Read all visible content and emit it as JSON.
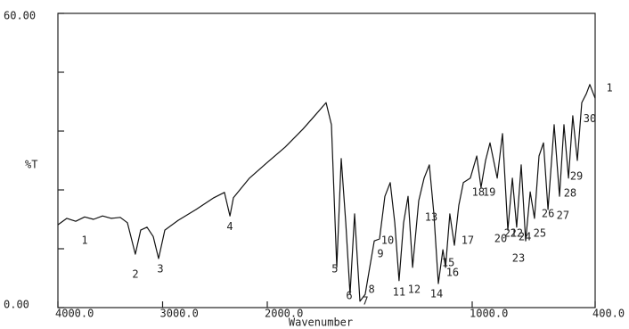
{
  "chart_data": {
    "type": "line",
    "ylabel": "%T",
    "xlabel": "Wavenumber",
    "xlim": [
      4000,
      400
    ],
    "x_scale_change_at": 2000,
    "ylim": [
      0,
      60
    ],
    "xticks": [
      {
        "value": 4000,
        "label": "4000.0"
      },
      {
        "value": 3000,
        "label": "3000.0"
      },
      {
        "value": 2000,
        "label": "2000.0"
      },
      {
        "value": 1000,
        "label": "1000.0"
      },
      {
        "value": 400,
        "label": "400.0"
      }
    ],
    "yticks": [
      {
        "value": 0,
        "label": "0.00"
      },
      {
        "value": 60,
        "label": "60.00"
      }
    ],
    "yminorticks": [
      12,
      24,
      36,
      48
    ],
    "grid": false,
    "color": "#111111",
    "x": [
      4000,
      3915,
      3830,
      3745,
      3660,
      3574,
      3489,
      3404,
      3336,
      3260,
      3209,
      3149,
      3089,
      3038,
      2979,
      2851,
      2681,
      2511,
      2409,
      2357,
      2323,
      2170,
      2000,
      1913,
      1826,
      1761,
      1713,
      1687,
      1661,
      1639,
      1617,
      1596,
      1574,
      1548,
      1522,
      1500,
      1478,
      1452,
      1426,
      1400,
      1378,
      1357,
      1335,
      1313,
      1291,
      1261,
      1235,
      1209,
      1187,
      1165,
      1143,
      1130,
      1109,
      1087,
      1065,
      1043,
      1009,
      978,
      957,
      935,
      913,
      878,
      852,
      826,
      804,
      783,
      761,
      739,
      717,
      696,
      674,
      652,
      630,
      600,
      574,
      552,
      530,
      509,
      487,
      465,
      443,
      426,
      400
    ],
    "values": [
      16.9,
      18.2,
      17.6,
      18.5,
      18.0,
      18.7,
      18.2,
      18.4,
      17.3,
      10.9,
      15.8,
      16.4,
      14.5,
      10.0,
      15.8,
      17.8,
      20.0,
      22.4,
      23.5,
      18.7,
      22.4,
      26.4,
      29.6,
      32.7,
      36.4,
      39.5,
      41.8,
      37.3,
      8.2,
      30.4,
      17.3,
      2.7,
      19.1,
      1.3,
      2.7,
      8.2,
      13.6,
      14.0,
      22.7,
      25.5,
      17.3,
      5.5,
      17.3,
      22.7,
      8.2,
      21.8,
      26.4,
      29.1,
      19.1,
      4.9,
      11.8,
      8.2,
      19.1,
      12.7,
      20.9,
      25.5,
      26.4,
      30.9,
      24.5,
      30.0,
      33.6,
      26.4,
      35.5,
      15.8,
      26.4,
      16.4,
      29.1,
      13.6,
      23.6,
      18.2,
      30.9,
      33.6,
      20.0,
      37.3,
      22.7,
      37.3,
      26.4,
      39.1,
      30.0,
      41.8,
      43.6,
      45.5,
      42.7
    ],
    "annotations": [
      {
        "label": "1",
        "x": 3745,
        "y": 13.6
      },
      {
        "label": "2",
        "x": 3260,
        "y": 6.7
      },
      {
        "label": "3",
        "x": 3021,
        "y": 7.8
      },
      {
        "label": "4",
        "x": 2357,
        "y": 16.5
      },
      {
        "label": "5",
        "x": 1670,
        "y": 7.8
      },
      {
        "label": "6",
        "x": 1600,
        "y": 2.4
      },
      {
        "label": "7",
        "x": 1522,
        "y": 1.3
      },
      {
        "label": "8",
        "x": 1491,
        "y": 3.6
      },
      {
        "label": "9",
        "x": 1448,
        "y": 10.9
      },
      {
        "label": "10",
        "x": 1413,
        "y": 13.6
      },
      {
        "label": "11",
        "x": 1357,
        "y": 3.1
      },
      {
        "label": "12",
        "x": 1283,
        "y": 3.6
      },
      {
        "label": "13",
        "x": 1200,
        "y": 18.4
      },
      {
        "label": "14",
        "x": 1174,
        "y": 2.7
      },
      {
        "label": "15",
        "x": 1117,
        "y": 9.1
      },
      {
        "label": "16",
        "x": 1096,
        "y": 7.1
      },
      {
        "label": "17",
        "x": 1022,
        "y": 13.6
      },
      {
        "label": "18",
        "x": 970,
        "y": 23.5
      },
      {
        "label": "19",
        "x": 917,
        "y": 23.5
      },
      {
        "label": "20",
        "x": 861,
        "y": 14.0
      },
      {
        "label": "21",
        "x": 813,
        "y": 15.1
      },
      {
        "label": "22",
        "x": 783,
        "y": 15.1
      },
      {
        "label": "23",
        "x": 774,
        "y": 10.0
      },
      {
        "label": "24",
        "x": 743,
        "y": 14.4
      },
      {
        "label": "25",
        "x": 670,
        "y": 15.1
      },
      {
        "label": "26",
        "x": 630,
        "y": 19.1
      },
      {
        "label": "27",
        "x": 557,
        "y": 18.7
      },
      {
        "label": "28",
        "x": 522,
        "y": 23.3
      },
      {
        "label": "29",
        "x": 491,
        "y": 26.7
      },
      {
        "label": "30",
        "x": 426,
        "y": 38.5
      },
      {
        "label": "1",
        "x": 330,
        "y": 44.7
      }
    ]
  }
}
